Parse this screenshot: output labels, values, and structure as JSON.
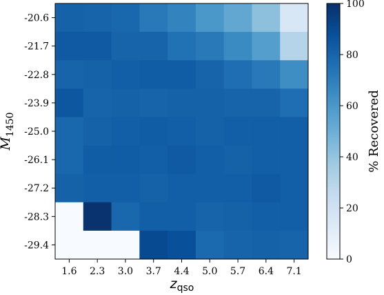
{
  "chart_data": {
    "type": "heatmap",
    "title": "",
    "xlabel": "z",
    "xlabel_sub": "qso",
    "ylabel": "M",
    "ylabel_sub": "1450",
    "x_ticks": [
      "1.6",
      "2.3",
      "3.0",
      "3.7",
      "4.4",
      "5.0",
      "5.7",
      "6.4",
      "7.1"
    ],
    "y_ticks": [
      "-20.6",
      "-21.7",
      "-22.8",
      "-23.9",
      "-25.0",
      "-26.1",
      "-27.2",
      "-28.3",
      "-29.4"
    ],
    "colorbar": {
      "label": "% Recovered",
      "range": [
        0,
        100
      ],
      "ticks": [
        "0",
        "20",
        "40",
        "60",
        "80",
        "100"
      ],
      "colormap": "Blues"
    },
    "values": [
      [
        81,
        80,
        79,
        72,
        68,
        60,
        53,
        42,
        16
      ],
      [
        84,
        84,
        80,
        80,
        75,
        72,
        65,
        57,
        30
      ],
      [
        80,
        81,
        82,
        83,
        83,
        80,
        76,
        72,
        64
      ],
      [
        85,
        80,
        81,
        80,
        81,
        81,
        80,
        80,
        76
      ],
      [
        79,
        81,
        82,
        83,
        82,
        81,
        82,
        82,
        82
      ],
      [
        79,
        83,
        83,
        82,
        84,
        82,
        81,
        82,
        82
      ],
      [
        81,
        82,
        82,
        81,
        82,
        82,
        82,
        84,
        82
      ],
      [
        0,
        99,
        79,
        82,
        82,
        80,
        81,
        82,
        82
      ],
      [
        0,
        0,
        0,
        90,
        88,
        78,
        80,
        81,
        80
      ]
    ]
  }
}
